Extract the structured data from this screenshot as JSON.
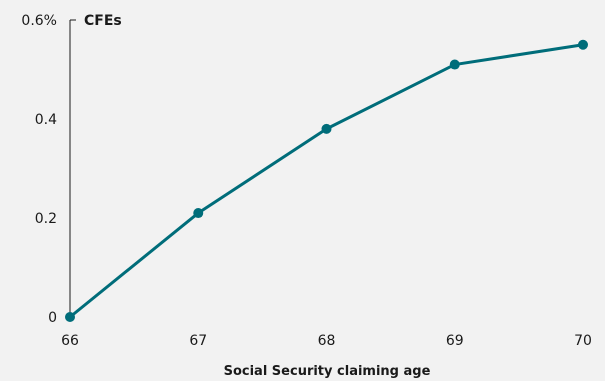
{
  "chart_data": {
    "type": "line",
    "x": [
      66,
      67,
      68,
      69,
      70
    ],
    "xlabel": "Social Security claiming age",
    "ylabel": "",
    "ylim": [
      0,
      0.6
    ],
    "xlim": [
      66,
      70
    ],
    "x_ticks": [
      "66",
      "67",
      "68",
      "69",
      "70"
    ],
    "y_ticks": [
      {
        "value": 0,
        "label": "0"
      },
      {
        "value": 0.2,
        "label": "0.2"
      },
      {
        "value": 0.4,
        "label": "0.4"
      },
      {
        "value": 0.6,
        "label": "0.6%"
      }
    ],
    "series": [
      {
        "name": "CFEs",
        "values": [
          0.0,
          0.21,
          0.38,
          0.51,
          0.55
        ],
        "color": "#006d7a"
      }
    ],
    "grid": false,
    "legend": "top-left"
  }
}
